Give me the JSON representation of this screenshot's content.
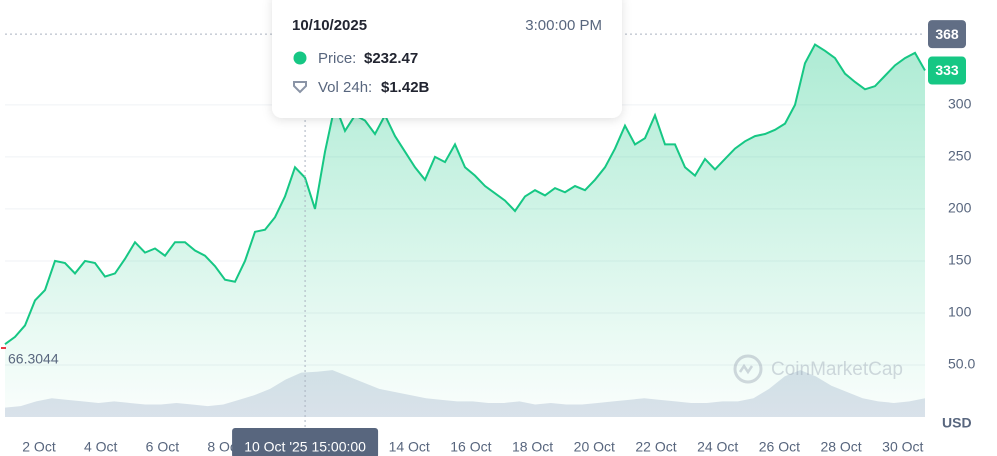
{
  "chart_data": {
    "type": "line",
    "xlim": [
      0.898,
      30.72
    ],
    "xticks": [
      {
        "value": 2,
        "label": "2 Oct"
      },
      {
        "value": 4,
        "label": "4 Oct"
      },
      {
        "value": 6,
        "label": "6 Oct"
      },
      {
        "value": 8,
        "label": "8 Oct"
      },
      {
        "value": 14,
        "label": "14 Oct"
      },
      {
        "value": 16,
        "label": "16 Oct"
      },
      {
        "value": 18,
        "label": "18 Oct"
      },
      {
        "value": 20,
        "label": "20 Oct"
      },
      {
        "value": 22,
        "label": "22 Oct"
      },
      {
        "value": 24,
        "label": "24 Oct"
      },
      {
        "value": 26,
        "label": "26 Oct"
      },
      {
        "value": 28,
        "label": "28 Oct"
      },
      {
        "value": 30,
        "label": "30 Oct"
      }
    ],
    "ylim": [
      0,
      396
    ],
    "yticks": [
      {
        "value": 50,
        "label": "50.0"
      },
      100,
      150,
      200,
      250,
      300
    ],
    "y_unit": "USD",
    "grid": true,
    "series": [
      {
        "name": "Price",
        "color": "#16c784",
        "values": [
          70,
          77,
          88,
          112,
          122,
          150,
          148,
          138,
          150,
          148,
          135,
          138,
          152,
          168,
          158,
          162,
          155,
          168,
          168,
          160,
          155,
          145,
          132,
          130,
          150,
          178,
          180,
          192,
          212,
          240,
          230,
          200,
          255,
          300,
          275,
          290,
          285,
          272,
          290,
          270,
          255,
          240,
          228,
          250,
          245,
          262,
          240,
          232,
          222,
          215,
          208,
          198,
          212,
          218,
          213,
          220,
          216,
          222,
          218,
          228,
          240,
          258,
          280,
          262,
          268,
          290,
          262,
          262,
          240,
          232,
          248,
          238,
          248,
          258,
          265,
          270,
          272,
          276,
          282,
          300,
          340,
          358,
          352,
          345,
          330,
          322,
          315,
          318,
          328,
          338,
          345,
          350,
          333
        ]
      },
      {
        "name": "Vol 24h",
        "color": "#cfd6e4",
        "values": [
          0.3,
          0.35,
          0.5,
          0.6,
          0.55,
          0.5,
          0.45,
          0.5,
          0.45,
          0.4,
          0.4,
          0.45,
          0.4,
          0.35,
          0.4,
          0.55,
          0.7,
          0.9,
          1.2,
          1.42,
          1.45,
          1.5,
          1.3,
          1.1,
          0.9,
          0.8,
          0.7,
          0.6,
          0.55,
          0.5,
          0.5,
          0.45,
          0.45,
          0.5,
          0.4,
          0.45,
          0.4,
          0.4,
          0.45,
          0.5,
          0.55,
          0.6,
          0.55,
          0.5,
          0.45,
          0.45,
          0.5,
          0.5,
          0.6,
          0.9,
          1.3,
          1.5,
          1.3,
          1.0,
          0.8,
          0.6,
          0.5,
          0.45,
          0.5,
          0.6
        ]
      }
    ],
    "high": 368,
    "current": 333,
    "low": 66.3044,
    "hover": {
      "x": 10.625,
      "label": "10 Oct '25 15:00:00",
      "date": "10/10/2025",
      "time": "3:00:00 PM",
      "price_label": "Price:",
      "price": "$232.47",
      "vol_label": "Vol 24h:",
      "vol": "$1.42B"
    },
    "watermark": "CoinMarketCap"
  }
}
